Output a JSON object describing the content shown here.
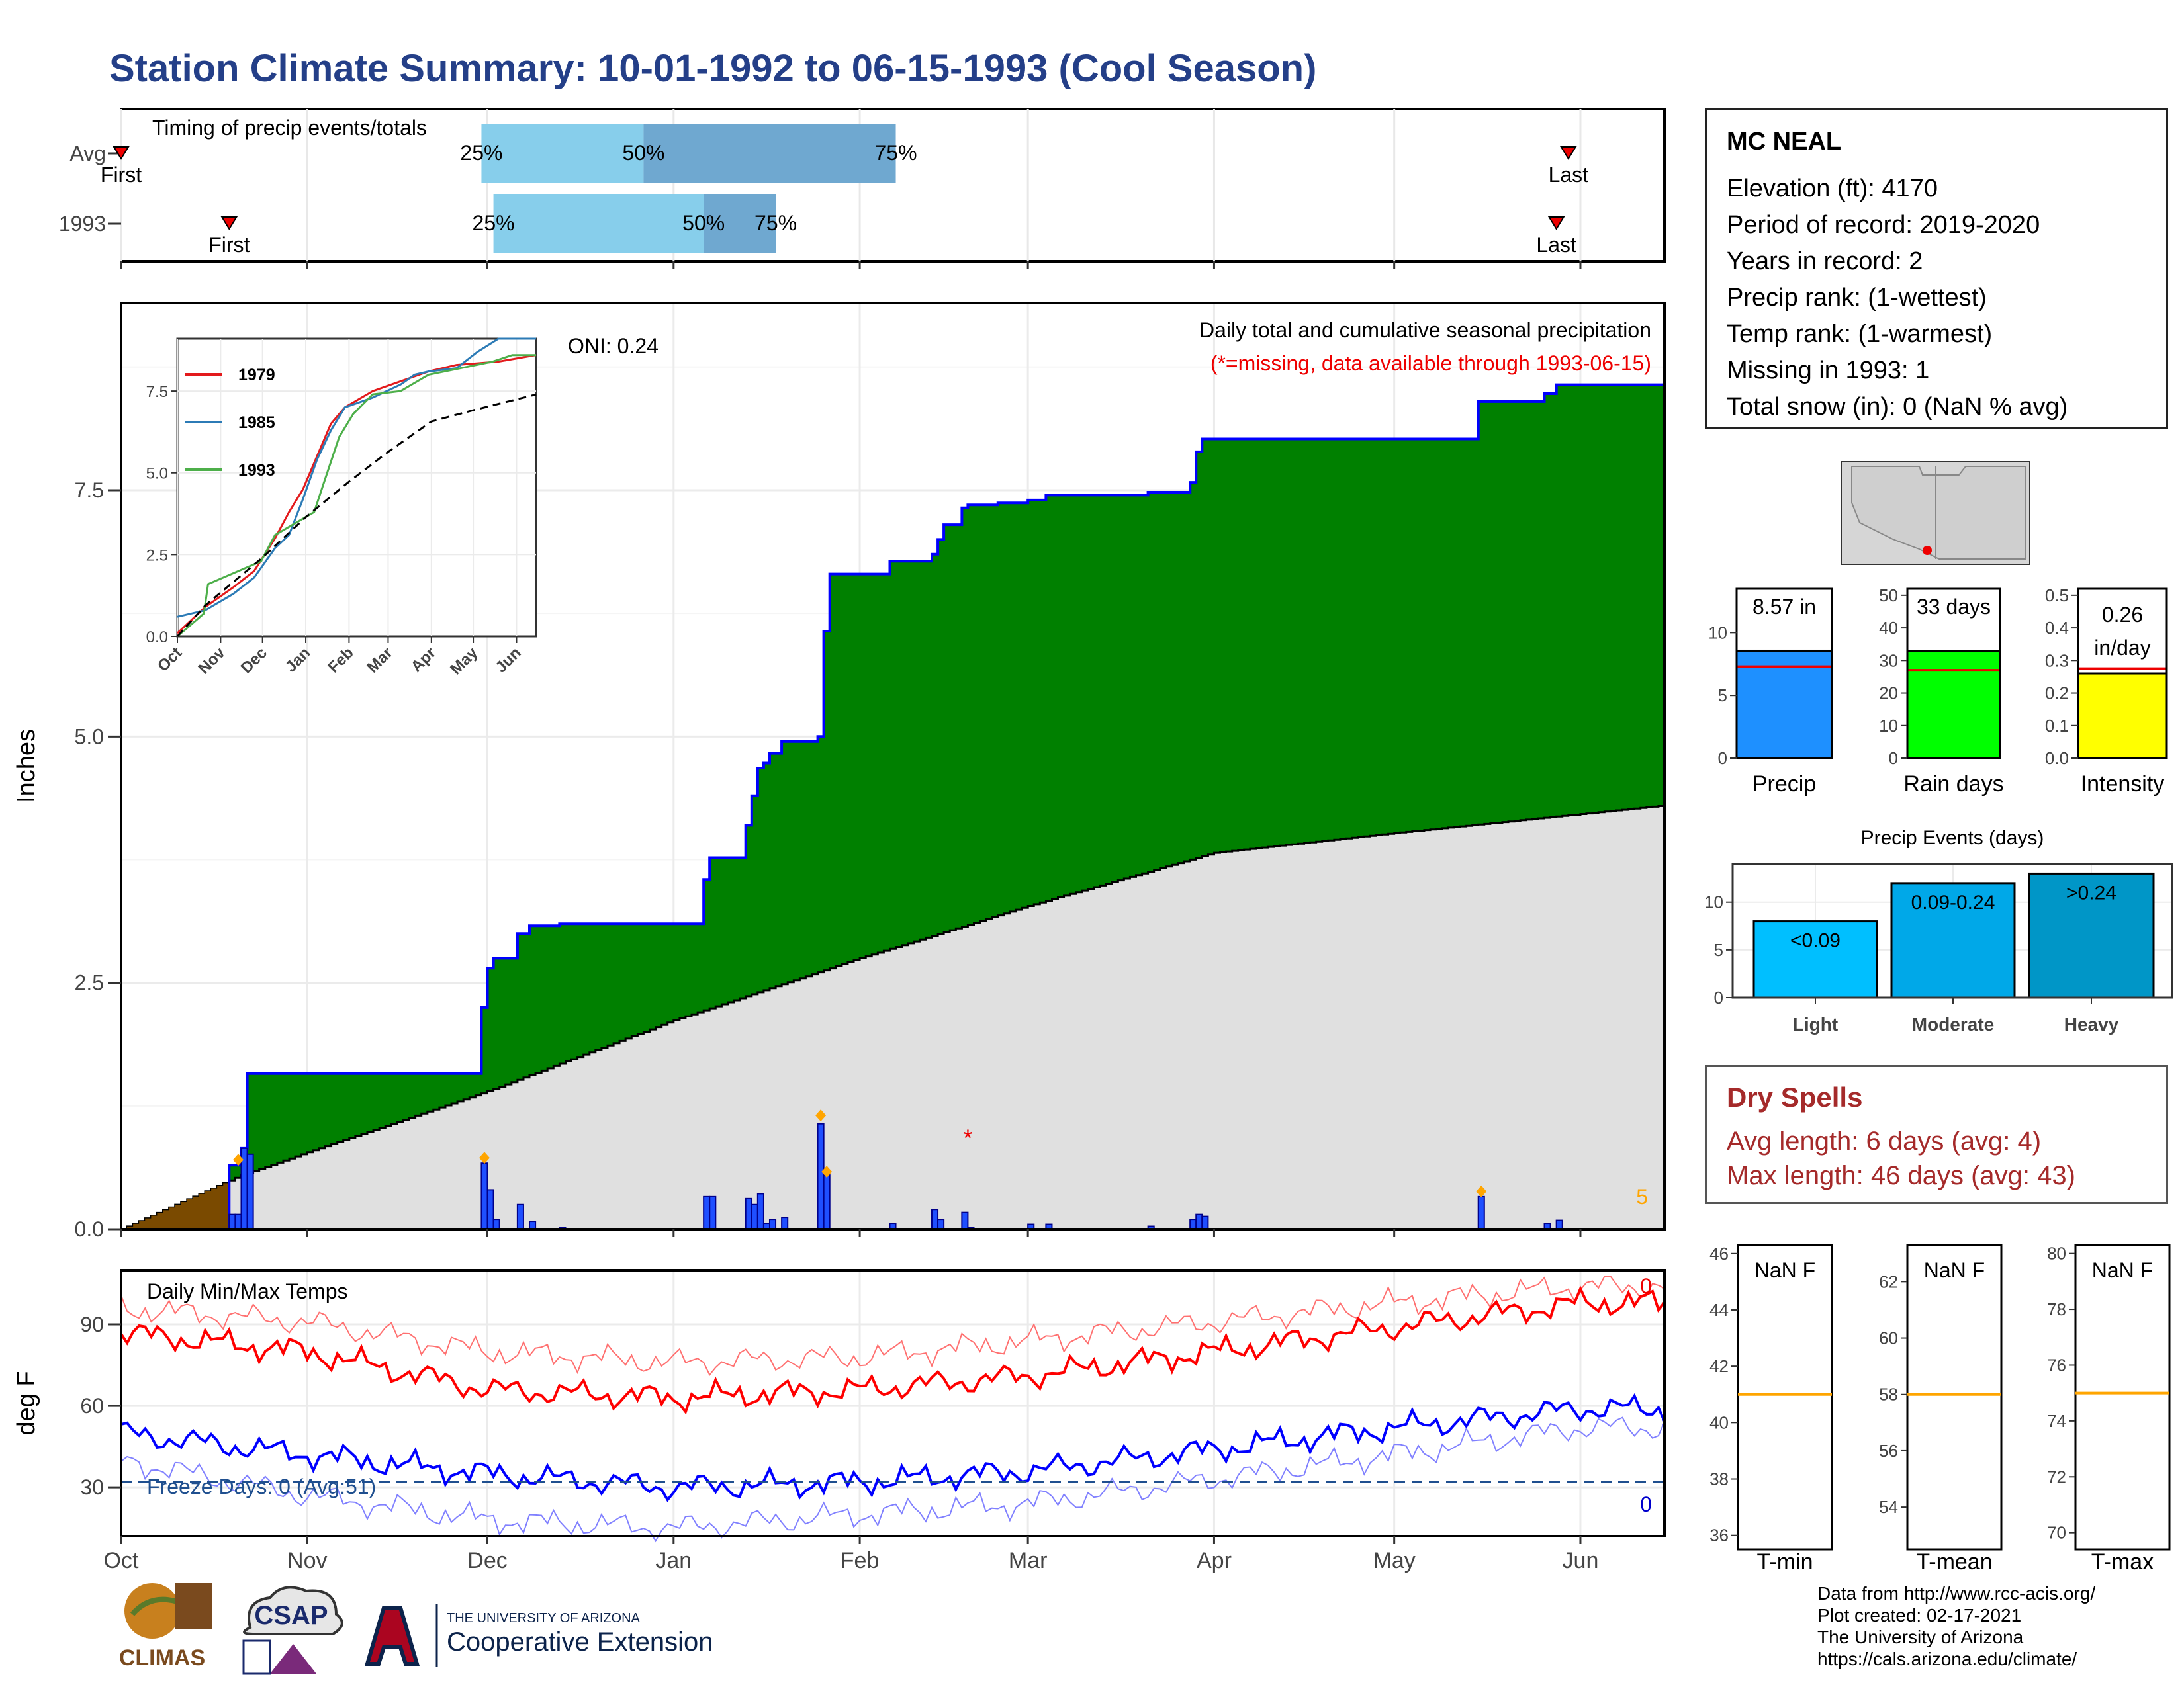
{
  "title": "Station Climate Summary: 10-01-1992 to 06-15-1993 (Cool Season)",
  "timing": {
    "label": "Timing of precip events/totals",
    "rows": [
      {
        "label": "Avg",
        "first_label": "First",
        "last_label": "Last",
        "first_date": "1992-10-01",
        "last_date": "1993-05-30",
        "q25_date": "1992-11-30",
        "q50_date": "1992-12-27",
        "q75_date": "1993-02-07",
        "q25_label": "25%",
        "q50_label": "50%",
        "q75_label": "75%"
      },
      {
        "label": "1993",
        "first_label": "First",
        "last_label": "Last",
        "first_date": "1992-10-19",
        "last_date": "1993-05-28",
        "q25_date": "1992-12-02",
        "q50_date": "1993-01-06",
        "q75_date": "1993-01-18",
        "q25_label": "25%",
        "q50_label": "50%",
        "q75_label": "75%"
      }
    ]
  },
  "precip_panel": {
    "header": "Daily total and cumulative seasonal precipitation",
    "missing_note": "(*=missing, data available through 1993-06-15)",
    "oni": "ONI: 0.24",
    "ylabel": "Inches",
    "y_ticks": [
      "0.0",
      "2.5",
      "5.0",
      "7.5"
    ],
    "corner_count": "5",
    "inset": {
      "y_ticks": [
        "0.0",
        "2.5",
        "5.0",
        "7.5"
      ],
      "x_ticks": [
        "Oct",
        "Nov",
        "Dec",
        "Jan",
        "Feb",
        "Mar",
        "Apr",
        "May",
        "Jun"
      ],
      "legend": [
        "1979",
        "1985",
        "1993"
      ],
      "colors": [
        "#e31a1c",
        "#2c7bb6",
        "#4daf4a"
      ]
    }
  },
  "temp_panel": {
    "label": "Daily Min/Max Temps",
    "ylabel": "deg F",
    "y_ticks": [
      "30",
      "60",
      "90"
    ],
    "freeze_label": "Freeze Days: 0 (Avg:51)",
    "max_count": "0",
    "min_count": "0"
  },
  "x_axis": {
    "ticks": [
      "Oct",
      "Nov",
      "Dec",
      "Jan",
      "Feb",
      "Mar",
      "Apr",
      "May",
      "Jun"
    ]
  },
  "station": {
    "name": "MC NEAL",
    "lines": [
      "Elevation (ft): 4170",
      "Period of record: 2019-2020",
      "Years in record: 2",
      "Precip rank:  (1-wettest)",
      "Temp rank:  (1-warmest)",
      "Missing in 1993: 1",
      "Total snow (in): 0 (NaN % avg)"
    ]
  },
  "summary_bars": [
    {
      "label": "Precip",
      "value_label": "8.57 in",
      "y_ticks": [
        "0",
        "5",
        "10"
      ],
      "color": "#1e90ff"
    },
    {
      "label": "Rain days",
      "value_label": "33 days",
      "y_ticks": [
        "0",
        "10",
        "20",
        "30",
        "40",
        "50"
      ],
      "color": "#00ff00"
    },
    {
      "label": "Intensity",
      "value_label": "0.26",
      "value_label2": "in/day",
      "y_ticks": [
        "0.0",
        "0.1",
        "0.2",
        "0.3",
        "0.4",
        "0.5"
      ],
      "color": "#ffff00"
    }
  ],
  "events": {
    "title": "Precip Events (days)",
    "y_ticks": [
      "0",
      "5",
      "10"
    ],
    "bars": [
      {
        "category": "Light",
        "label": "<0.09",
        "value": 8,
        "color": "#00bfff"
      },
      {
        "category": "Moderate",
        "label": "0.09-0.24",
        "value": 12,
        "color": "#00a8e8"
      },
      {
        "category": "Heavy",
        "label": ">0.24",
        "value": 13,
        "color": "#0096c7"
      }
    ]
  },
  "dry_spells": {
    "title": "Dry Spells",
    "avg": "Avg length: 6 days (avg: 4)",
    "max": "Max length: 46 days (avg: 43)"
  },
  "temp_boxes": [
    {
      "label": "T-min",
      "value_label": "NaN F",
      "y_ticks": [
        "36",
        "38",
        "40",
        "42",
        "44",
        "46"
      ],
      "avg_line": 41
    },
    {
      "label": "T-mean",
      "value_label": "NaN F",
      "y_ticks": [
        "54",
        "56",
        "58",
        "60",
        "62"
      ],
      "avg_line": 58
    },
    {
      "label": "T-max",
      "value_label": "NaN F",
      "y_ticks": [
        "70",
        "72",
        "74",
        "76",
        "78",
        "80"
      ],
      "avg_line": 75
    }
  ],
  "credits": [
    "Data from http://www.rcc-acis.org/",
    "Plot created: 02-17-2021",
    "The University of Arizona",
    "https://cals.arizona.edu/climate/"
  ],
  "logos": {
    "climas": "CLIMAS",
    "csap": "CSAP",
    "ua_line1": "THE UNIVERSITY OF ARIZONA",
    "ua_line2": "Cooperative Extension"
  },
  "colors": {
    "title": "#243f88",
    "observed_fill": "#008000",
    "normal_fill": "#e0e0e0",
    "cum_line": "#0000ff",
    "tmax": "#ff0000",
    "tmin": "#0000ff",
    "dry_spell": "#a52a2a",
    "q_light": "#87ceeb",
    "q_dark": "#6fa8d0"
  },
  "chart_data": {
    "type": "area",
    "title": "Daily total and cumulative seasonal precipitation",
    "ylabel": "Inches",
    "season_start": "1992-10-01",
    "season_end": "1993-06-15",
    "observed_total": 8.57,
    "normal_total": 4.3,
    "cumulative_steps": [
      {
        "date": "1992-10-01",
        "cum": 0.0
      },
      {
        "date": "1992-10-19",
        "cum": 0.65
      },
      {
        "date": "1992-10-21",
        "cum": 0.82
      },
      {
        "date": "1992-10-22",
        "cum": 1.58
      },
      {
        "date": "1992-11-30",
        "cum": 2.25
      },
      {
        "date": "1992-12-01",
        "cum": 2.65
      },
      {
        "date": "1992-12-02",
        "cum": 2.75
      },
      {
        "date": "1992-12-06",
        "cum": 3.0
      },
      {
        "date": "1992-12-08",
        "cum": 3.08
      },
      {
        "date": "1992-12-13",
        "cum": 3.1
      },
      {
        "date": "1993-01-06",
        "cum": 3.55
      },
      {
        "date": "1993-01-07",
        "cum": 3.77
      },
      {
        "date": "1993-01-13",
        "cum": 4.1
      },
      {
        "date": "1993-01-14",
        "cum": 4.4
      },
      {
        "date": "1993-01-15",
        "cum": 4.68
      },
      {
        "date": "1993-01-16",
        "cum": 4.73
      },
      {
        "date": "1993-01-17",
        "cum": 4.83
      },
      {
        "date": "1993-01-19",
        "cum": 4.95
      },
      {
        "date": "1993-01-25",
        "cum": 5.0
      },
      {
        "date": "1993-01-26",
        "cum": 6.07
      },
      {
        "date": "1993-01-27",
        "cum": 6.65
      },
      {
        "date": "1993-02-06",
        "cum": 6.78
      },
      {
        "date": "1993-02-13",
        "cum": 6.85
      },
      {
        "date": "1993-02-14",
        "cum": 7.0
      },
      {
        "date": "1993-02-15",
        "cum": 7.15
      },
      {
        "date": "1993-02-18",
        "cum": 7.32
      },
      {
        "date": "1993-02-19",
        "cum": 7.35
      },
      {
        "date": "1993-02-24",
        "cum": 7.37
      },
      {
        "date": "1993-03-01",
        "cum": 7.4
      },
      {
        "date": "1993-03-04",
        "cum": 7.45
      },
      {
        "date": "1993-03-21",
        "cum": 7.48
      },
      {
        "date": "1993-03-28",
        "cum": 7.58
      },
      {
        "date": "1993-03-29",
        "cum": 7.89
      },
      {
        "date": "1993-03-30",
        "cum": 8.02
      },
      {
        "date": "1993-05-15",
        "cum": 8.4
      },
      {
        "date": "1993-05-26",
        "cum": 8.48
      },
      {
        "date": "1993-05-28",
        "cum": 8.57
      }
    ],
    "normal_cumulative": [
      {
        "date": "1992-10-01",
        "cum": 0.0
      },
      {
        "date": "1992-10-21",
        "cum": 0.55
      },
      {
        "date": "1992-11-01",
        "cum": 0.78
      },
      {
        "date": "1992-12-01",
        "cum": 1.4
      },
      {
        "date": "1993-01-01",
        "cum": 2.12
      },
      {
        "date": "1993-02-01",
        "cum": 2.75
      },
      {
        "date": "1993-03-01",
        "cum": 3.28
      },
      {
        "date": "1993-04-01",
        "cum": 3.82
      },
      {
        "date": "1993-05-01",
        "cum": 4.02
      },
      {
        "date": "1993-06-15",
        "cum": 4.3
      }
    ],
    "daily_bars": [
      {
        "date": "1992-10-19",
        "value": 0.15
      },
      {
        "date": "1992-10-20",
        "value": 0.15
      },
      {
        "date": "1992-10-21",
        "value": 0.82
      },
      {
        "date": "1992-10-22",
        "value": 0.76
      },
      {
        "date": "1992-11-30",
        "value": 0.67
      },
      {
        "date": "1992-12-01",
        "value": 0.4
      },
      {
        "date": "1992-12-02",
        "value": 0.1
      },
      {
        "date": "1992-12-06",
        "value": 0.25
      },
      {
        "date": "1992-12-08",
        "value": 0.08
      },
      {
        "date": "1992-12-13",
        "value": 0.02
      },
      {
        "date": "1993-01-06",
        "value": 0.33
      },
      {
        "date": "1993-01-07",
        "value": 0.33
      },
      {
        "date": "1993-01-13",
        "value": 0.31
      },
      {
        "date": "1993-01-14",
        "value": 0.25
      },
      {
        "date": "1993-01-15",
        "value": 0.36
      },
      {
        "date": "1993-01-16",
        "value": 0.06
      },
      {
        "date": "1993-01-17",
        "value": 0.1
      },
      {
        "date": "1993-01-19",
        "value": 0.12
      },
      {
        "date": "1993-01-25",
        "value": 1.07
      },
      {
        "date": "1993-01-26",
        "value": 0.55
      },
      {
        "date": "1993-02-06",
        "value": 0.06
      },
      {
        "date": "1993-02-13",
        "value": 0.2
      },
      {
        "date": "1993-02-14",
        "value": 0.1
      },
      {
        "date": "1993-02-18",
        "value": 0.17
      },
      {
        "date": "1993-02-19",
        "value": 0.02
      },
      {
        "date": "1993-03-01",
        "value": 0.05
      },
      {
        "date": "1993-03-04",
        "value": 0.05
      },
      {
        "date": "1993-03-21",
        "value": 0.03
      },
      {
        "date": "1993-03-28",
        "value": 0.1
      },
      {
        "date": "1993-03-29",
        "value": 0.15
      },
      {
        "date": "1993-03-30",
        "value": 0.13
      },
      {
        "date": "1993-05-15",
        "value": 0.33
      },
      {
        "date": "1993-05-26",
        "value": 0.06
      },
      {
        "date": "1993-05-28",
        "value": 0.09
      }
    ],
    "heavy_markers": [
      {
        "date": "1992-10-20",
        "value": 0.65
      },
      {
        "date": "1992-11-30",
        "value": 0.67
      },
      {
        "date": "1993-01-25",
        "value": 1.1
      },
      {
        "date": "1993-01-26",
        "value": 0.53
      },
      {
        "date": "1993-05-15",
        "value": 0.33
      }
    ],
    "missing": [
      {
        "date": "1993-02-19",
        "value": 0.95
      }
    ],
    "monthly_normal_temps": {
      "months": [
        "Oct",
        "Nov",
        "Dec",
        "Jan",
        "Feb",
        "Mar",
        "Apr",
        "May",
        "Jun"
      ],
      "tmax_1993": [
        87,
        80,
        66,
        63,
        66,
        71,
        80,
        89,
        98
      ],
      "tmin_1993": [
        50,
        42,
        35,
        30,
        32,
        36,
        44,
        52,
        59
      ],
      "tmax_record_max": [
        96,
        91,
        80,
        76,
        78,
        84,
        91,
        98,
        104
      ],
      "tmin_record_min": [
        40,
        27,
        18,
        15,
        20,
        24,
        33,
        42,
        52
      ],
      "freeze_line": 32,
      "ylim": [
        12,
        110
      ]
    }
  }
}
